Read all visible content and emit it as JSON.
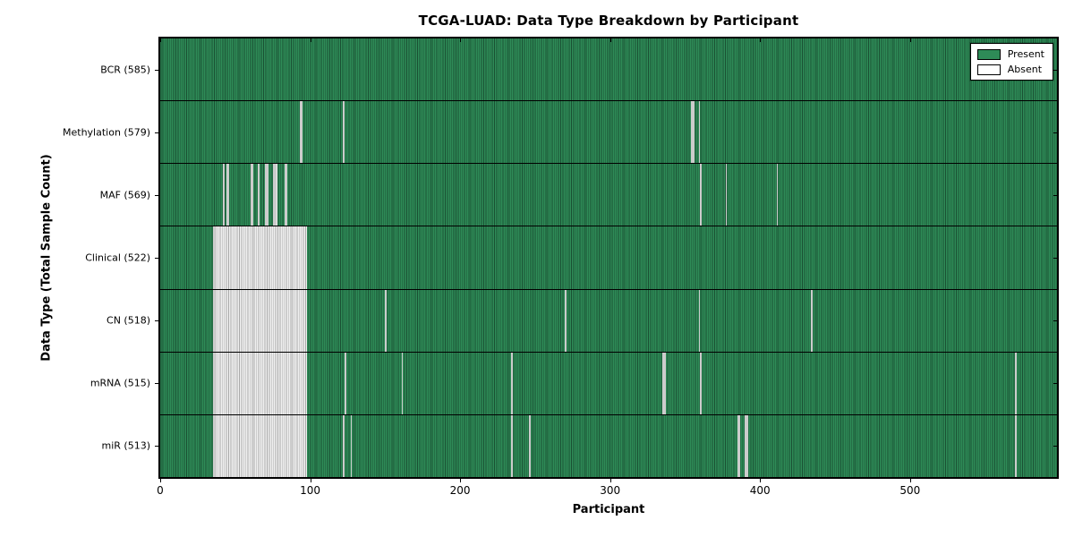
{
  "chart_data": {
    "type": "heatmap",
    "title": "TCGA-LUAD: Data Type Breakdown by Participant",
    "xlabel": "Participant",
    "ylabel": "Data Type (Total Sample Count)",
    "x_ticks": [
      0,
      100,
      200,
      300,
      400,
      500
    ],
    "x_axis_max": 598,
    "participants_total": 585,
    "grid": false,
    "legend_position": "upper right",
    "colors": {
      "present": "#2E8B57",
      "absent": "#FFFFFF",
      "bar_edge": "#000000",
      "absent_block_tint": "#D9D9D9"
    },
    "legend": [
      {
        "label": "Present",
        "color": "#2E8B57"
      },
      {
        "label": "Absent",
        "color": "#FFFFFF"
      }
    ],
    "rows": [
      {
        "name": "BCR",
        "label": "BCR (585)",
        "present_count": 585,
        "absent_count": 0,
        "absent_stripes": []
      },
      {
        "name": "Methylation",
        "label": "Methylation (579)",
        "present_count": 579,
        "absent_count": 6,
        "absent_stripes": [
          {
            "start": 93,
            "count": 2
          },
          {
            "start": 122,
            "count": 1
          },
          {
            "start": 354,
            "count": 2
          },
          {
            "start": 359,
            "count": 1
          }
        ]
      },
      {
        "name": "MAF",
        "label": "MAF (569)",
        "present_count": 569,
        "absent_count": 16,
        "absent_stripes": [
          {
            "start": 42,
            "count": 1
          },
          {
            "start": 44,
            "count": 2
          },
          {
            "start": 60,
            "count": 2
          },
          {
            "start": 65,
            "count": 1
          },
          {
            "start": 70,
            "count": 2
          },
          {
            "start": 75,
            "count": 3
          },
          {
            "start": 83,
            "count": 2
          },
          {
            "start": 360,
            "count": 1
          },
          {
            "start": 377,
            "count": 1
          },
          {
            "start": 411,
            "count": 1
          }
        ]
      },
      {
        "name": "Clinical",
        "label": "Clinical (522)",
        "present_count": 522,
        "absent_count": 63,
        "absent_stripes": [
          {
            "start": 35,
            "count": 63
          }
        ]
      },
      {
        "name": "CN",
        "label": "CN (518)",
        "present_count": 518,
        "absent_count": 67,
        "absent_stripes": [
          {
            "start": 35,
            "count": 63
          },
          {
            "start": 150,
            "count": 1
          },
          {
            "start": 270,
            "count": 1
          },
          {
            "start": 359,
            "count": 1
          },
          {
            "start": 434,
            "count": 1
          }
        ]
      },
      {
        "name": "mRNA",
        "label": "mRNA (515)",
        "present_count": 515,
        "absent_count": 70,
        "absent_stripes": [
          {
            "start": 35,
            "count": 63
          },
          {
            "start": 123,
            "count": 1
          },
          {
            "start": 161,
            "count": 1
          },
          {
            "start": 234,
            "count": 1
          },
          {
            "start": 335,
            "count": 2
          },
          {
            "start": 360,
            "count": 1
          },
          {
            "start": 570,
            "count": 1
          }
        ]
      },
      {
        "name": "miR",
        "label": "miR (513)",
        "present_count": 513,
        "absent_count": 72,
        "absent_stripes": [
          {
            "start": 35,
            "count": 63
          },
          {
            "start": 122,
            "count": 1
          },
          {
            "start": 127,
            "count": 1
          },
          {
            "start": 234,
            "count": 1
          },
          {
            "start": 246,
            "count": 1
          },
          {
            "start": 385,
            "count": 2
          },
          {
            "start": 390,
            "count": 2
          },
          {
            "start": 570,
            "count": 1
          }
        ]
      }
    ]
  }
}
